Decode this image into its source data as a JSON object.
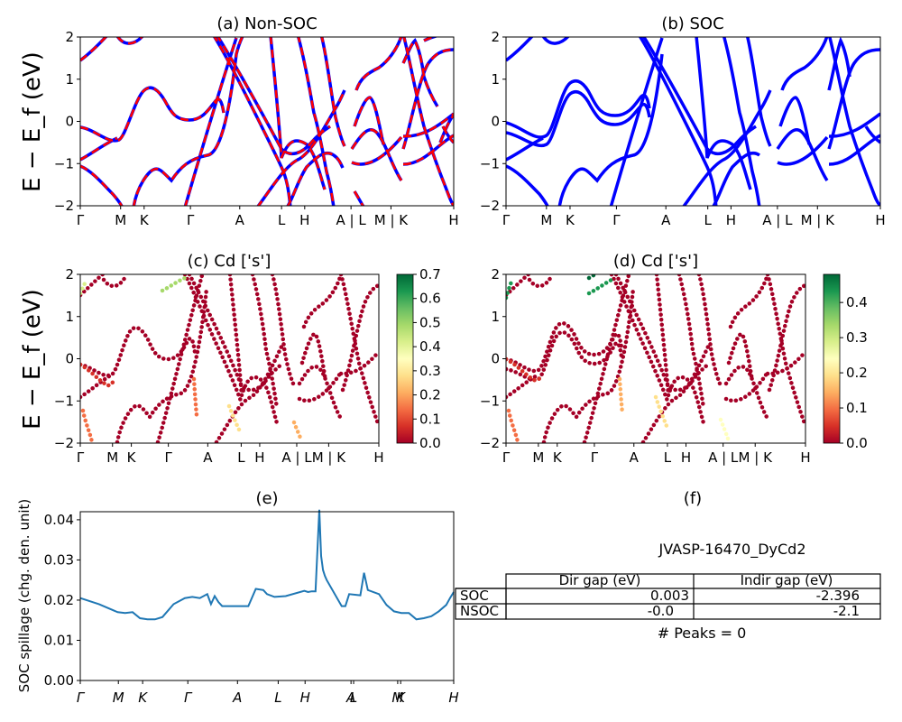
{
  "figure": {
    "ylabel_main": "E − E_f (eV)",
    "ylabel_spillage": "SOC spillage (chg. den. unit)"
  },
  "kpath_labels_a": [
    "Γ",
    "M",
    "K",
    "Γ",
    "A",
    "L",
    "H",
    "A | L",
    "M | K",
    "H"
  ],
  "kpath_labels_c": [
    "Γ",
    "M",
    "K",
    "Γ",
    "A",
    "L",
    "H",
    "A | L",
    "M | K",
    "H"
  ],
  "kpath_labels_e": [
    "Γ",
    "M",
    "K",
    "Γ",
    "A",
    "L",
    "H",
    "A",
    "L",
    "M",
    "K",
    "H"
  ],
  "chart_data": [
    {
      "id": "a",
      "type": "line",
      "title": "(a) Non-SOC",
      "ylabel": "E − E_f (eV)",
      "ylim": [
        -2,
        2
      ],
      "yticks": [
        -2,
        -1,
        0,
        1,
        2
      ],
      "xticks": [
        "Γ",
        "M",
        "K",
        "Γ",
        "A",
        "L",
        "H",
        "A | L",
        "M | K",
        "H"
      ],
      "series": [
        {
          "style": "blue solid",
          "color": "#0000ff"
        },
        {
          "style": "red dashed",
          "color": "#ff0000"
        }
      ]
    },
    {
      "id": "b",
      "type": "line",
      "title": "(b) SOC",
      "ylim": [
        -2,
        2
      ],
      "yticks": [
        -2,
        -1,
        0,
        1,
        2
      ],
      "xticks": [
        "Γ",
        "M",
        "K",
        "Γ",
        "A",
        "L",
        "H",
        "A | L",
        "M | K",
        "H"
      ],
      "series": [
        {
          "style": "blue solid",
          "color": "#0000ff"
        }
      ]
    },
    {
      "id": "c",
      "type": "scatter",
      "title": "(c)  Cd ['s']",
      "ylabel": "E − E_f (eV)",
      "ylim": [
        -2,
        2
      ],
      "yticks": [
        -2,
        -1,
        0,
        1,
        2
      ],
      "xticks": [
        "Γ",
        "M",
        "K",
        "Γ",
        "A",
        "L",
        "H",
        "A | L",
        "M | K",
        "H"
      ],
      "colorbar": {
        "colormap": "RdYlGn",
        "min": 0.0,
        "max": 0.7,
        "ticks": [
          "0.0",
          "0.1",
          "0.2",
          "0.3",
          "0.4",
          "0.5",
          "0.6",
          "0.7"
        ]
      }
    },
    {
      "id": "d",
      "type": "scatter",
      "title": "(d) Cd ['s']",
      "ylim": [
        -2,
        2
      ],
      "yticks": [
        -2,
        -1,
        0,
        1,
        2
      ],
      "xticks": [
        "Γ",
        "M",
        "K",
        "Γ",
        "A",
        "L",
        "H",
        "A | L",
        "M | K",
        "H"
      ],
      "colorbar": {
        "colormap": "RdYlGn",
        "min": 0.0,
        "max": 0.48,
        "ticks": [
          "0.0",
          "0.1",
          "0.2",
          "0.3",
          "0.4"
        ]
      }
    },
    {
      "id": "e",
      "type": "line",
      "title": "(e)",
      "ylabel": "SOC spillage (chg. den. unit)",
      "ylim": [
        0,
        0.042
      ],
      "yticks": [
        "0.00",
        "0.01",
        "0.02",
        "0.03",
        "0.04"
      ],
      "xticks": [
        "Γ",
        "M",
        "K",
        "Γ",
        "A",
        "L",
        "H",
        "A",
        "L",
        "M",
        "K",
        "H"
      ],
      "color": "#1f77b4",
      "x": [
        0,
        0.05,
        0.1,
        0.12,
        0.14,
        0.16,
        0.18,
        0.2,
        0.22,
        0.25,
        0.28,
        0.3,
        0.32,
        0.34,
        0.35,
        0.36,
        0.37,
        0.38,
        0.39,
        0.4,
        0.42,
        0.45,
        0.47,
        0.49,
        0.5,
        0.52,
        0.55,
        0.6,
        0.61,
        0.62,
        0.63,
        0.64,
        0.645,
        0.65,
        0.655,
        0.66,
        0.7,
        0.71,
        0.72,
        0.75,
        0.76,
        0.77,
        0.8,
        0.82,
        0.84,
        0.86,
        0.88,
        0.9,
        0.92,
        0.94,
        0.96,
        0.98,
        0.99,
        1.0
      ],
      "y": [
        0.0205,
        0.019,
        0.017,
        0.0168,
        0.017,
        0.0155,
        0.0152,
        0.0152,
        0.0158,
        0.019,
        0.0205,
        0.0208,
        0.0205,
        0.0215,
        0.019,
        0.021,
        0.0195,
        0.0185,
        0.0185,
        0.0185,
        0.0185,
        0.0185,
        0.0228,
        0.0225,
        0.0215,
        0.0208,
        0.021,
        0.0223,
        0.022,
        0.0222,
        0.0222,
        0.0425,
        0.031,
        0.0275,
        0.026,
        0.025,
        0.0185,
        0.0185,
        0.0215,
        0.0212,
        0.0268,
        0.0225,
        0.0215,
        0.0188,
        0.0172,
        0.0168,
        0.0168,
        0.0152,
        0.0155,
        0.016,
        0.0172,
        0.0188,
        0.0205,
        0.022
      ]
    }
  ],
  "info": {
    "title": "(f)",
    "material": "JVASP-16470_DyCd2",
    "table": {
      "columns": [
        "Dir gap (eV)",
        "Indir gap (eV)"
      ],
      "rows": [
        {
          "label": "SOC",
          "values": [
            "0.003",
            "-2.396"
          ]
        },
        {
          "label": "NSOC",
          "values": [
            "-0.0",
            "-2.1"
          ]
        }
      ]
    },
    "peaks": "# Peaks = 0"
  }
}
